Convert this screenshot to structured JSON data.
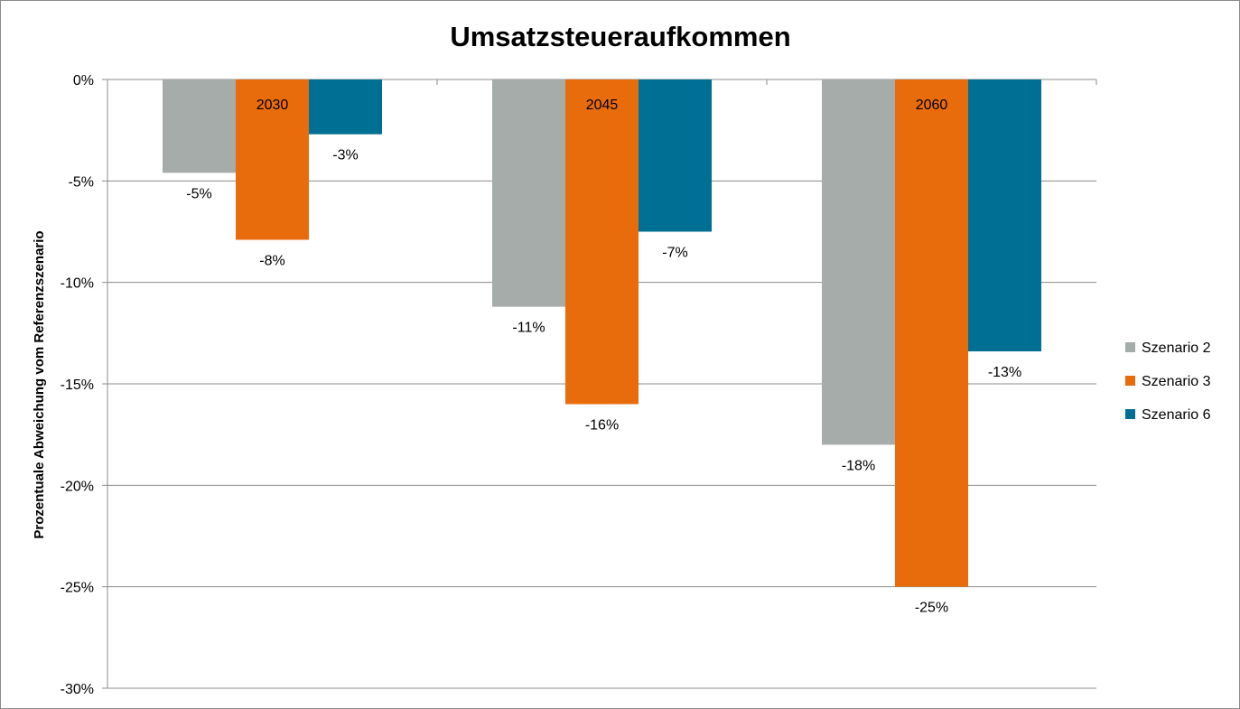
{
  "chart_data": {
    "type": "bar",
    "title": "Umsatzsteueraufkommen",
    "ylabel": "Prozentuale  Abweichung vom Referenzszenario",
    "xlabel": "",
    "categories": [
      "2030",
      "2045",
      "2060"
    ],
    "series": [
      {
        "name": "Szenario 2",
        "color": "#a5aca9",
        "values": [
          -4.6,
          -11.2,
          -18.0
        ],
        "labels": [
          "-5%",
          "-11%",
          "-18%"
        ]
      },
      {
        "name": "Szenario 3",
        "color": "#e96c0c",
        "values": [
          -7.9,
          -16.0,
          -25.0
        ],
        "labels": [
          "-8%",
          "-16%",
          "-25%"
        ]
      },
      {
        "name": "Szenario 6",
        "color": "#006f94",
        "values": [
          -2.7,
          -7.5,
          -13.4
        ],
        "labels": [
          "-3%",
          "-7%",
          "-13%"
        ]
      }
    ],
    "ylim": [
      -30,
      0
    ],
    "yticks": [
      0,
      -5,
      -10,
      -15,
      -20,
      -25,
      -30
    ],
    "ytick_labels": [
      "0%",
      "-5%",
      "-10%",
      "-15%",
      "-20%",
      "-25%",
      "-30%"
    ],
    "grid": true,
    "legend_position": "right"
  }
}
